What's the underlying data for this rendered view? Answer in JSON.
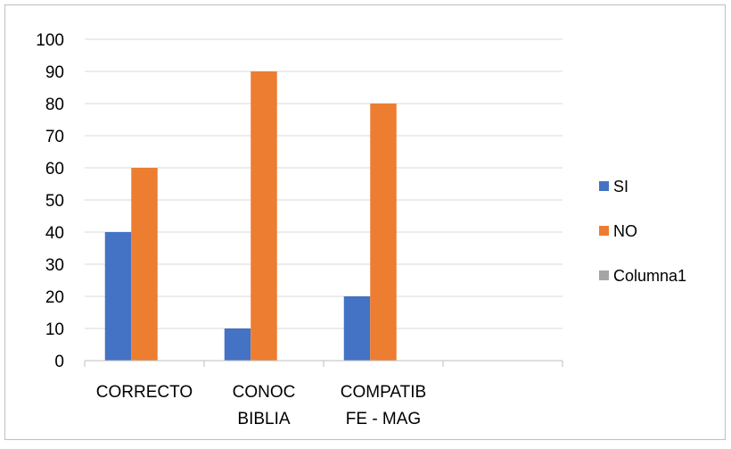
{
  "chart_data": {
    "type": "bar",
    "categories": [
      "CORRECTO",
      "CONOC BIBLIA",
      "COMPATIB FE - MAG",
      ""
    ],
    "category_lines": [
      [
        "CORRECTO"
      ],
      [
        "CONOC",
        "BIBLIA"
      ],
      [
        "COMPATIB",
        "FE - MAG"
      ],
      [
        ""
      ]
    ],
    "series": [
      {
        "name": "SI",
        "values": [
          40,
          10,
          20,
          null
        ],
        "color": "#4472C4"
      },
      {
        "name": "NO",
        "values": [
          60,
          90,
          80,
          null
        ],
        "color": "#ED7D31"
      },
      {
        "name": "Columna1",
        "values": [
          null,
          null,
          null,
          null
        ],
        "color": "#A5A5A5"
      }
    ],
    "ylim": [
      0,
      100
    ],
    "yticks": [
      0,
      10,
      20,
      30,
      40,
      50,
      60,
      70,
      80,
      90,
      100
    ],
    "grid": true,
    "legend": "right",
    "title": "",
    "xlabel": "",
    "ylabel": ""
  }
}
